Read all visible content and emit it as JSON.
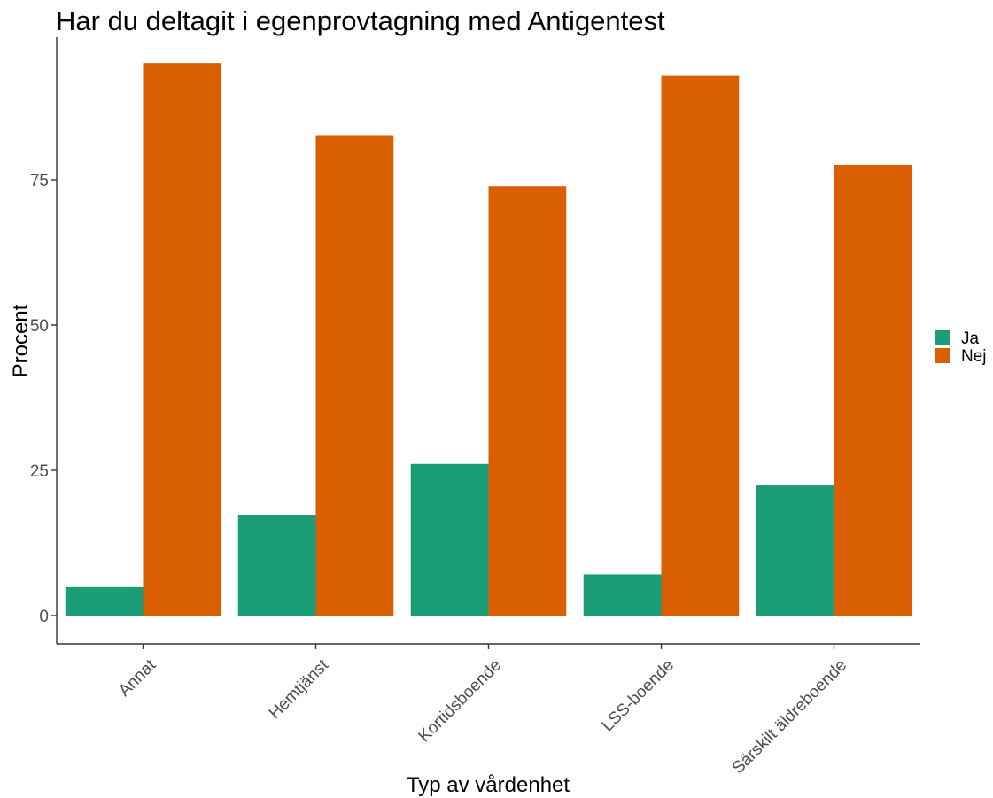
{
  "chart_data": {
    "type": "bar",
    "title": "Har du deltagit i egenprovtagning med Antigentest",
    "xlabel": "Typ av vårdenhet",
    "ylabel": "Procent",
    "categories": [
      "Annat",
      "Hemtjänst",
      "Kortidsboende",
      "LSS-boende",
      "Särskilt äldreboende"
    ],
    "series": [
      {
        "name": "Ja",
        "color": "#1b9e77",
        "values": [
          4.9,
          17.3,
          26.1,
          7.1,
          22.4
        ]
      },
      {
        "name": "Nej",
        "color": "#d95f02",
        "values": [
          95.1,
          82.7,
          73.9,
          92.9,
          77.6
        ]
      }
    ],
    "ylim": [
      -5,
      100
    ],
    "yticks": [
      0,
      25,
      50,
      75
    ],
    "ytick_labels": [
      "0",
      "25",
      "50",
      "75"
    ],
    "grid": false,
    "legend_position": "right"
  }
}
